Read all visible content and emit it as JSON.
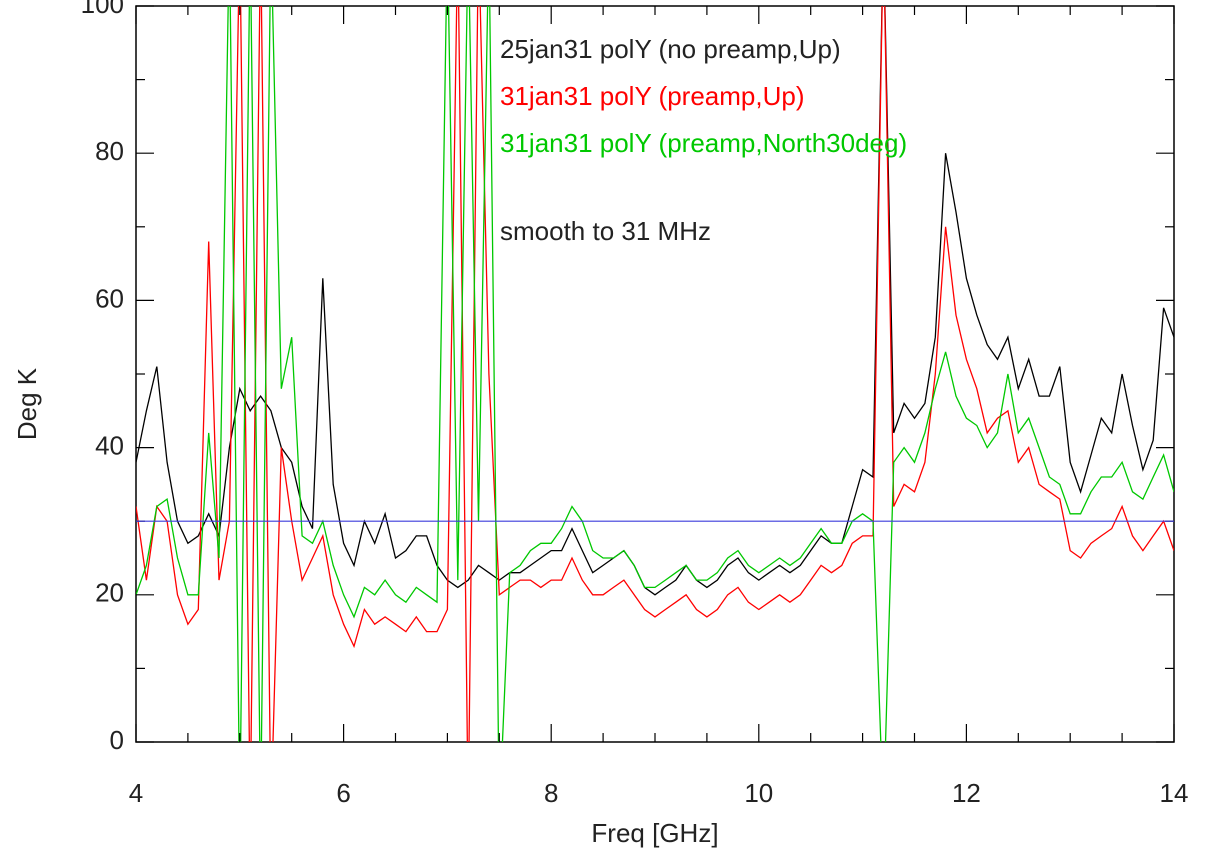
{
  "chart_data": {
    "type": "line",
    "xlabel": "Freq [GHz]",
    "ylabel": "Deg K",
    "annotation": "smooth to 31 MHz",
    "x": [
      4,
      4.1,
      4.2,
      4.3,
      4.4,
      4.5,
      4.6,
      4.7,
      4.8,
      4.9,
      5,
      5.1,
      5.2,
      5.3,
      5.4,
      5.5,
      5.6,
      5.7,
      5.8,
      5.9,
      6,
      6.1,
      6.2,
      6.3,
      6.4,
      6.5,
      6.6,
      6.7,
      6.8,
      6.9,
      7,
      7.1,
      7.2,
      7.3,
      7.4,
      7.5,
      7.6,
      7.7,
      7.8,
      7.9,
      8,
      8.1,
      8.2,
      8.3,
      8.4,
      8.5,
      8.6,
      8.7,
      8.8,
      8.9,
      9,
      9.1,
      9.2,
      9.3,
      9.4,
      9.5,
      9.6,
      9.7,
      9.8,
      9.9,
      10,
      10.1,
      10.2,
      10.3,
      10.4,
      10.5,
      10.6,
      10.7,
      10.8,
      10.9,
      11,
      11.1,
      11.2,
      11.3,
      11.4,
      11.5,
      11.6,
      11.7,
      11.8,
      11.9,
      12,
      12.1,
      12.2,
      12.3,
      12.4,
      12.5,
      12.6,
      12.7,
      12.8,
      12.9,
      13,
      13.1,
      13.2,
      13.3,
      13.4,
      13.5,
      13.6,
      13.7,
      13.8,
      13.9,
      14
    ],
    "series": [
      {
        "name": "25jan31 polY (no preamp,Up)",
        "color": "#000000",
        "values": [
          38,
          45,
          51,
          38,
          30,
          27,
          28,
          31,
          28,
          40,
          48,
          45,
          47,
          45,
          40,
          38,
          32,
          29,
          63,
          35,
          27,
          24,
          30,
          27,
          31,
          25,
          26,
          28,
          28,
          24,
          22,
          21,
          22,
          24,
          23,
          22,
          23,
          23,
          24,
          25,
          26,
          26,
          29,
          26,
          23,
          24,
          25,
          26,
          24,
          21,
          20,
          21,
          22,
          24,
          22,
          21,
          22,
          24,
          25,
          23,
          22,
          23,
          24,
          23,
          24,
          26,
          28,
          27,
          27,
          32,
          37,
          36,
          110,
          42,
          46,
          44,
          46,
          55,
          80,
          72,
          63,
          58,
          54,
          52,
          55,
          48,
          52,
          47,
          47,
          51,
          38,
          34,
          39,
          44,
          42,
          50,
          43,
          37,
          41,
          59,
          55
        ]
      },
      {
        "name": "31jan31 polY (preamp,Up)",
        "color": "#ff0000",
        "values": [
          32,
          22,
          32,
          30,
          20,
          16,
          18,
          68,
          22,
          30,
          110,
          -10,
          110,
          -10,
          40,
          30,
          22,
          25,
          28,
          20,
          16,
          13,
          18,
          16,
          17,
          16,
          15,
          17,
          15,
          15,
          18,
          110,
          -10,
          110,
          50,
          20,
          21,
          22,
          22,
          21,
          22,
          22,
          25,
          22,
          20,
          20,
          21,
          22,
          20,
          18,
          17,
          18,
          19,
          20,
          18,
          17,
          18,
          20,
          21,
          19,
          18,
          19,
          20,
          19,
          20,
          22,
          24,
          23,
          24,
          27,
          28,
          28,
          110,
          32,
          35,
          34,
          38,
          50,
          70,
          58,
          52,
          48,
          42,
          44,
          45,
          38,
          40,
          35,
          34,
          33,
          26,
          25,
          27,
          28,
          29,
          32,
          28,
          26,
          28,
          30,
          26
        ]
      },
      {
        "name": "31jan31 polY (preamp,North30deg)",
        "color": "#00c800",
        "values": [
          20,
          24,
          32,
          33,
          25,
          20,
          20,
          42,
          25,
          110,
          -10,
          110,
          -10,
          110,
          48,
          55,
          28,
          27,
          30,
          24,
          20,
          17,
          21,
          20,
          22,
          20,
          19,
          21,
          20,
          19,
          110,
          22,
          110,
          30,
          110,
          -10,
          23,
          24,
          26,
          27,
          27,
          29,
          32,
          30,
          26,
          25,
          25,
          26,
          24,
          21,
          21,
          22,
          23,
          24,
          22,
          22,
          23,
          25,
          26,
          24,
          23,
          24,
          25,
          24,
          25,
          27,
          29,
          27,
          27,
          30,
          31,
          30,
          -10,
          38,
          40,
          38,
          42,
          48,
          53,
          47,
          44,
          43,
          40,
          42,
          50,
          42,
          44,
          40,
          36,
          35,
          31,
          31,
          34,
          36,
          36,
          38,
          34,
          33,
          36,
          39,
          34
        ]
      }
    ],
    "reference_line": {
      "value": 30,
      "color": "#3c3cdc"
    },
    "xlim": [
      4,
      14
    ],
    "xticks": [
      4,
      6,
      8,
      10,
      12,
      14
    ],
    "xminorticks": [
      4.5,
      5,
      5.5,
      6.5,
      7,
      7.5,
      8.5,
      9,
      9.5,
      10.5,
      11,
      11.5,
      12.5,
      13,
      13.5
    ],
    "ylim": [
      0,
      100
    ],
    "yticks": [
      0,
      20,
      40,
      60,
      80,
      100
    ],
    "yminorticks": [
      10,
      30,
      50,
      70,
      90
    ],
    "grid": false
  }
}
